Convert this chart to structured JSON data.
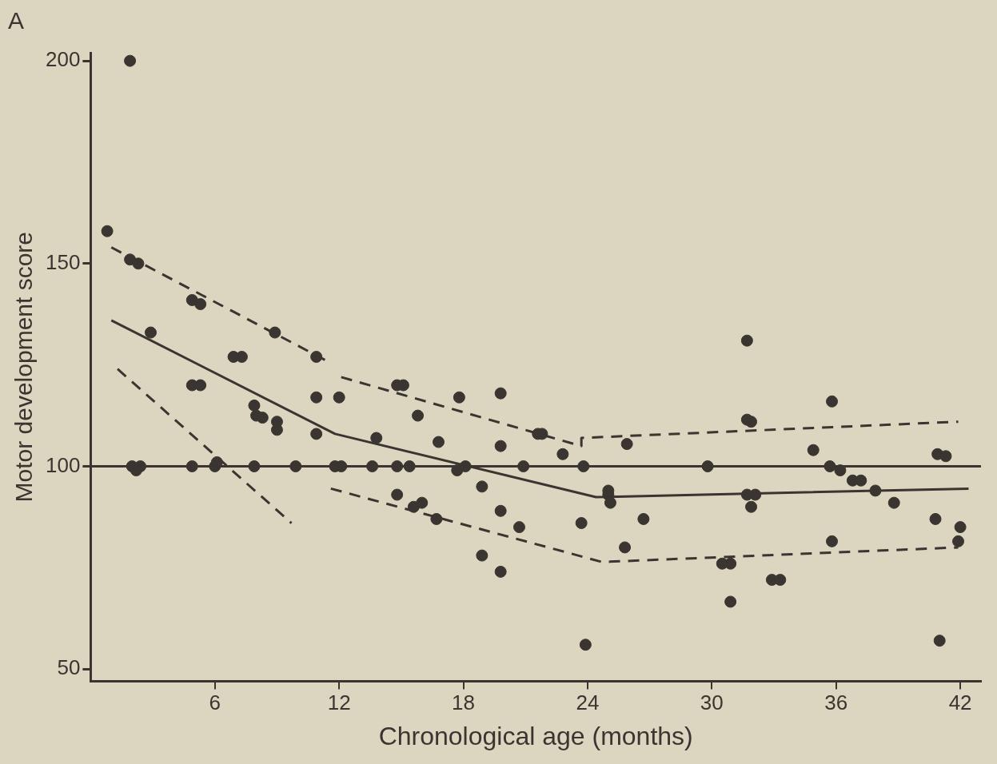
{
  "chart_data": {
    "type": "scatter",
    "title": "A",
    "xlabel": "Chronological age (months)",
    "ylabel": "Motor development score",
    "xlim": [
      0,
      43
    ],
    "xticks": [
      6,
      12,
      18,
      24,
      30,
      36,
      42
    ],
    "ylim": [
      47,
      202
    ],
    "yticks": [
      50,
      100,
      150,
      200
    ],
    "grid": false,
    "legend": false,
    "marker": "circle",
    "ref_lines": [
      {
        "axis": "y",
        "value": 100,
        "color": "#3a3530",
        "line_style": "solid"
      }
    ],
    "series": [
      {
        "color": "#3a3530",
        "x": [
          0.8,
          1.9,
          1.9,
          2.3,
          2.9,
          2.0,
          2.2,
          2.4,
          4.9,
          5.3,
          4.9,
          5.3,
          4.9,
          6.0,
          6.1,
          6.9,
          7.3,
          7.9,
          8.0,
          8.3,
          9.0,
          9.0,
          7.9,
          8.9,
          9.9,
          10.9,
          10.9,
          12.0,
          10.9,
          11.8,
          12.1,
          13.8,
          13.6,
          14.8,
          15.1,
          14.8,
          15.4,
          14.8,
          15.8,
          15.6,
          16.0,
          16.7,
          16.8,
          17.8,
          17.7,
          18.1,
          18.9,
          18.9,
          19.8,
          19.8,
          19.8,
          19.8,
          20.7,
          20.9,
          21.6,
          21.8,
          22.8,
          23.8,
          23.7,
          23.9,
          25.8,
          26.7,
          25.9,
          25.0,
          25.0,
          25.1,
          31.7,
          35.8,
          31.9,
          31.7,
          34.9,
          29.8,
          35.7,
          36.2,
          36.8,
          37.2,
          37.9,
          38.8,
          40.8,
          42.0,
          41.9,
          40.9,
          41.3,
          41.0,
          35.8,
          30.9,
          30.5,
          32.9,
          33.3,
          30.9,
          31.7,
          31.9,
          32.1
        ],
        "values": [
          158,
          200,
          151,
          150,
          133,
          100,
          99,
          100,
          141,
          140,
          120,
          120,
          100,
          100,
          101,
          127,
          127,
          115,
          112.5,
          112,
          111,
          109,
          100,
          133,
          100,
          127,
          117,
          117,
          108,
          100,
          100,
          107,
          100,
          120,
          120,
          100,
          100,
          93,
          112.5,
          90,
          91,
          87,
          106,
          117,
          99,
          100,
          95,
          78,
          118,
          105,
          74,
          89,
          85,
          100,
          108,
          108,
          103,
          100,
          86,
          56,
          80,
          87,
          105.5,
          93,
          94,
          91,
          131,
          116,
          111,
          111.5,
          104,
          100,
          100,
          99,
          96.5,
          96.5,
          94,
          91,
          87,
          85,
          81.5,
          103,
          102.5,
          57,
          81.5,
          76,
          76,
          72,
          72,
          66.6,
          93,
          90,
          93
        ]
      },
      {
        "type": "line",
        "color": "#3a3530",
        "line_style": "solid",
        "marker": "none",
        "x": [
          1.0,
          11.8,
          24.4,
          42.4
        ],
        "values": [
          136,
          108,
          92.4,
          94.5
        ]
      },
      {
        "type": "line",
        "color": "#3a3530",
        "line_style": "dashed",
        "marker": "none",
        "x": [
          1.0,
          11.4
        ],
        "values": [
          154,
          126
        ]
      },
      {
        "type": "line",
        "color": "#3a3530",
        "line_style": "dashed",
        "marker": "none",
        "x": [
          12.1,
          23.7,
          23.7,
          41.9
        ],
        "values": [
          122,
          105,
          107,
          111
        ]
      },
      {
        "type": "line",
        "color": "#3a3530",
        "line_style": "dashed",
        "marker": "none",
        "x": [
          1.3,
          9.7
        ],
        "values": [
          124,
          86
        ]
      },
      {
        "type": "line",
        "color": "#3a3530",
        "line_style": "dashed",
        "marker": "none",
        "x": [
          11.6,
          24.7,
          41.9
        ],
        "values": [
          94.5,
          76.4,
          80
        ]
      }
    ]
  }
}
